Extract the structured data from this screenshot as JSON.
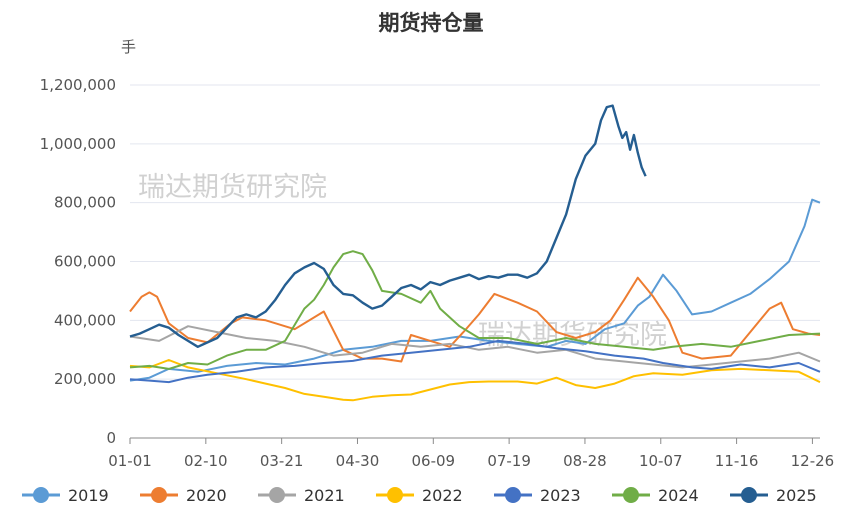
{
  "chart_data": {
    "type": "line",
    "title": "期货持仓量",
    "unit": "手",
    "watermark": "瑞达期货研究院",
    "xlabel": "",
    "ylabel": "",
    "x_ticks": [
      "01-01",
      "02-10",
      "03-21",
      "04-30",
      "06-09",
      "07-19",
      "08-28",
      "10-07",
      "11-16",
      "12-26"
    ],
    "y_ticks": [
      "0",
      "200,000",
      "400,000",
      "600,000",
      "800,000",
      "1,000,000",
      "1,200,000"
    ],
    "ylim": [
      0,
      1200000
    ],
    "grid": true,
    "legend_position": "bottom",
    "series": [
      {
        "name": "2019",
        "color": "#5b9bd5",
        "points": [
          [
            0,
            195000
          ],
          [
            10,
            205000
          ],
          [
            20,
            235000
          ],
          [
            35,
            225000
          ],
          [
            50,
            245000
          ],
          [
            65,
            255000
          ],
          [
            80,
            250000
          ],
          [
            95,
            270000
          ],
          [
            110,
            300000
          ],
          [
            125,
            310000
          ],
          [
            140,
            330000
          ],
          [
            155,
            330000
          ],
          [
            170,
            345000
          ],
          [
            185,
            330000
          ],
          [
            200,
            320000
          ],
          [
            215,
            310000
          ],
          [
            225,
            330000
          ],
          [
            235,
            320000
          ],
          [
            245,
            370000
          ],
          [
            255,
            390000
          ],
          [
            262,
            450000
          ],
          [
            268,
            480000
          ],
          [
            275,
            555000
          ],
          [
            282,
            500000
          ],
          [
            290,
            420000
          ],
          [
            300,
            430000
          ],
          [
            310,
            460000
          ],
          [
            320,
            490000
          ],
          [
            330,
            540000
          ],
          [
            340,
            600000
          ],
          [
            348,
            720000
          ],
          [
            352,
            810000
          ],
          [
            356,
            800000
          ]
        ]
      },
      {
        "name": "2020",
        "color": "#ed7d31",
        "points": [
          [
            0,
            430000
          ],
          [
            6,
            480000
          ],
          [
            10,
            495000
          ],
          [
            14,
            480000
          ],
          [
            20,
            390000
          ],
          [
            30,
            340000
          ],
          [
            40,
            325000
          ],
          [
            52,
            390000
          ],
          [
            58,
            410000
          ],
          [
            70,
            400000
          ],
          [
            85,
            370000
          ],
          [
            100,
            430000
          ],
          [
            110,
            300000
          ],
          [
            120,
            270000
          ],
          [
            130,
            270000
          ],
          [
            140,
            260000
          ],
          [
            145,
            350000
          ],
          [
            155,
            330000
          ],
          [
            165,
            310000
          ],
          [
            172,
            360000
          ],
          [
            180,
            420000
          ],
          [
            188,
            490000
          ],
          [
            200,
            460000
          ],
          [
            210,
            430000
          ],
          [
            220,
            360000
          ],
          [
            230,
            340000
          ],
          [
            240,
            360000
          ],
          [
            248,
            400000
          ],
          [
            255,
            470000
          ],
          [
            262,
            545000
          ],
          [
            270,
            480000
          ],
          [
            278,
            400000
          ],
          [
            285,
            290000
          ],
          [
            295,
            270000
          ],
          [
            310,
            280000
          ],
          [
            320,
            360000
          ],
          [
            330,
            440000
          ],
          [
            336,
            460000
          ],
          [
            342,
            370000
          ],
          [
            350,
            355000
          ],
          [
            356,
            350000
          ]
        ]
      },
      {
        "name": "2021",
        "color": "#a5a5a5",
        "points": [
          [
            0,
            345000
          ],
          [
            15,
            330000
          ],
          [
            30,
            380000
          ],
          [
            45,
            360000
          ],
          [
            60,
            340000
          ],
          [
            75,
            330000
          ],
          [
            90,
            310000
          ],
          [
            105,
            280000
          ],
          [
            120,
            290000
          ],
          [
            135,
            320000
          ],
          [
            150,
            310000
          ],
          [
            165,
            320000
          ],
          [
            180,
            300000
          ],
          [
            195,
            310000
          ],
          [
            210,
            290000
          ],
          [
            225,
            300000
          ],
          [
            240,
            270000
          ],
          [
            255,
            260000
          ],
          [
            270,
            250000
          ],
          [
            285,
            240000
          ],
          [
            300,
            250000
          ],
          [
            315,
            260000
          ],
          [
            330,
            270000
          ],
          [
            345,
            290000
          ],
          [
            356,
            260000
          ]
        ]
      },
      {
        "name": "2022",
        "color": "#ffc000",
        "points": [
          [
            0,
            245000
          ],
          [
            10,
            240000
          ],
          [
            20,
            265000
          ],
          [
            30,
            240000
          ],
          [
            45,
            220000
          ],
          [
            60,
            200000
          ],
          [
            70,
            185000
          ],
          [
            80,
            170000
          ],
          [
            90,
            150000
          ],
          [
            100,
            140000
          ],
          [
            110,
            130000
          ],
          [
            115,
            128000
          ],
          [
            125,
            140000
          ],
          [
            135,
            145000
          ],
          [
            145,
            148000
          ],
          [
            155,
            165000
          ],
          [
            165,
            182000
          ],
          [
            175,
            190000
          ],
          [
            185,
            192000
          ],
          [
            200,
            192000
          ],
          [
            210,
            185000
          ],
          [
            220,
            205000
          ],
          [
            230,
            180000
          ],
          [
            240,
            170000
          ],
          [
            250,
            185000
          ],
          [
            260,
            210000
          ],
          [
            270,
            220000
          ],
          [
            285,
            215000
          ],
          [
            300,
            230000
          ],
          [
            315,
            235000
          ],
          [
            330,
            230000
          ],
          [
            345,
            225000
          ],
          [
            356,
            190000
          ]
        ]
      },
      {
        "name": "2023",
        "color": "#4472c4",
        "points": [
          [
            0,
            200000
          ],
          [
            10,
            195000
          ],
          [
            20,
            190000
          ],
          [
            30,
            205000
          ],
          [
            40,
            215000
          ],
          [
            55,
            225000
          ],
          [
            70,
            240000
          ],
          [
            85,
            245000
          ],
          [
            100,
            255000
          ],
          [
            115,
            262000
          ],
          [
            130,
            280000
          ],
          [
            145,
            290000
          ],
          [
            160,
            300000
          ],
          [
            175,
            310000
          ],
          [
            190,
            330000
          ],
          [
            205,
            320000
          ],
          [
            220,
            305000
          ],
          [
            235,
            295000
          ],
          [
            250,
            280000
          ],
          [
            265,
            270000
          ],
          [
            275,
            255000
          ],
          [
            290,
            240000
          ],
          [
            300,
            235000
          ],
          [
            315,
            250000
          ],
          [
            330,
            240000
          ],
          [
            345,
            255000
          ],
          [
            356,
            225000
          ]
        ]
      },
      {
        "name": "2024",
        "color": "#70ad47",
        "points": [
          [
            0,
            240000
          ],
          [
            10,
            245000
          ],
          [
            20,
            235000
          ],
          [
            30,
            255000
          ],
          [
            40,
            250000
          ],
          [
            50,
            280000
          ],
          [
            60,
            300000
          ],
          [
            70,
            300000
          ],
          [
            80,
            330000
          ],
          [
            90,
            440000
          ],
          [
            95,
            470000
          ],
          [
            100,
            520000
          ],
          [
            105,
            580000
          ],
          [
            110,
            625000
          ],
          [
            115,
            635000
          ],
          [
            120,
            625000
          ],
          [
            125,
            570000
          ],
          [
            130,
            500000
          ],
          [
            140,
            490000
          ],
          [
            150,
            460000
          ],
          [
            155,
            500000
          ],
          [
            160,
            440000
          ],
          [
            170,
            380000
          ],
          [
            180,
            340000
          ],
          [
            195,
            340000
          ],
          [
            210,
            320000
          ],
          [
            225,
            340000
          ],
          [
            240,
            320000
          ],
          [
            255,
            310000
          ],
          [
            270,
            300000
          ],
          [
            280,
            310000
          ],
          [
            295,
            320000
          ],
          [
            310,
            310000
          ],
          [
            325,
            330000
          ],
          [
            340,
            350000
          ],
          [
            356,
            355000
          ]
        ]
      },
      {
        "name": "2025",
        "color": "#255e91",
        "points": [
          [
            0,
            345000
          ],
          [
            5,
            355000
          ],
          [
            10,
            370000
          ],
          [
            15,
            385000
          ],
          [
            20,
            375000
          ],
          [
            25,
            350000
          ],
          [
            30,
            330000
          ],
          [
            35,
            310000
          ],
          [
            40,
            325000
          ],
          [
            45,
            340000
          ],
          [
            50,
            375000
          ],
          [
            55,
            410000
          ],
          [
            60,
            420000
          ],
          [
            65,
            410000
          ],
          [
            70,
            430000
          ],
          [
            75,
            470000
          ],
          [
            80,
            520000
          ],
          [
            85,
            560000
          ],
          [
            90,
            580000
          ],
          [
            95,
            595000
          ],
          [
            100,
            575000
          ],
          [
            105,
            520000
          ],
          [
            110,
            490000
          ],
          [
            115,
            485000
          ],
          [
            120,
            460000
          ],
          [
            125,
            440000
          ],
          [
            130,
            450000
          ],
          [
            135,
            480000
          ],
          [
            140,
            510000
          ],
          [
            145,
            520000
          ],
          [
            150,
            505000
          ],
          [
            155,
            530000
          ],
          [
            160,
            520000
          ],
          [
            165,
            535000
          ],
          [
            170,
            545000
          ],
          [
            175,
            555000
          ],
          [
            180,
            540000
          ],
          [
            185,
            550000
          ],
          [
            190,
            545000
          ],
          [
            195,
            555000
          ],
          [
            200,
            555000
          ],
          [
            205,
            545000
          ],
          [
            210,
            560000
          ],
          [
            215,
            600000
          ],
          [
            220,
            680000
          ],
          [
            225,
            760000
          ],
          [
            230,
            880000
          ],
          [
            235,
            960000
          ],
          [
            240,
            1000000
          ],
          [
            243,
            1080000
          ],
          [
            246,
            1125000
          ],
          [
            249,
            1130000
          ],
          [
            252,
            1060000
          ],
          [
            254,
            1020000
          ],
          [
            256,
            1040000
          ],
          [
            258,
            980000
          ],
          [
            260,
            1030000
          ],
          [
            262,
            970000
          ],
          [
            264,
            920000
          ],
          [
            266,
            890000
          ]
        ]
      }
    ]
  }
}
